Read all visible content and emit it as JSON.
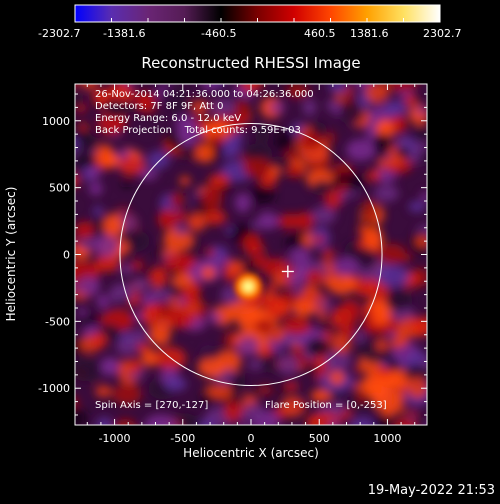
{
  "colorbar": {
    "min_label": "-2302.7",
    "ticks": [
      "-1381.6",
      "-460.5",
      "460.5",
      "1381.6"
    ],
    "max_label": "2302.7",
    "range": [
      -2302.7,
      2302.7
    ],
    "colors": [
      "#0000ff",
      "#5a2db0",
      "#6a2575",
      "#551c55",
      "#000000",
      "#7a0000",
      "#d00000",
      "#ff4500",
      "#ffa000",
      "#ffe060",
      "#ffffff"
    ]
  },
  "plot": {
    "title": "Reconstructed RHESSI Image",
    "xlabel": "Heliocentric X (arcsec)",
    "ylabel": "Heliocentric Y (arcsec)"
  },
  "info": {
    "line1": "26-Nov-2014 04:21:36.000 to 04:26:36.000",
    "line2": "Detectors: 7F 8F 9F, Att 0",
    "line3": "Energy Range: 6.0 - 12.0 keV",
    "line4": "Back Projection    Total counts: 9.59E+03",
    "spin_axis": "Spin Axis = [270,-127]",
    "flare_position": "Flare Position = [0,-253]"
  },
  "footer": {
    "date": "19-May-2022 21:53"
  },
  "chart_data": {
    "type": "heatmap",
    "title": "Reconstructed RHESSI Image",
    "xlabel": "Heliocentric X (arcsec)",
    "ylabel": "Heliocentric Y (arcsec)",
    "xlim": [
      -1290,
      1290
    ],
    "ylim": [
      -1275,
      1275
    ],
    "xticks": [
      -1000,
      -500,
      0,
      500,
      1000
    ],
    "yticks": [
      -1000,
      -500,
      0,
      500,
      1000
    ],
    "colorbar_range": [
      -2302.7,
      2302.7
    ],
    "brightest_source": [
      -20,
      -240
    ],
    "solar_limb_radius": 970,
    "marker_cross": [
      270,
      -127
    ]
  }
}
